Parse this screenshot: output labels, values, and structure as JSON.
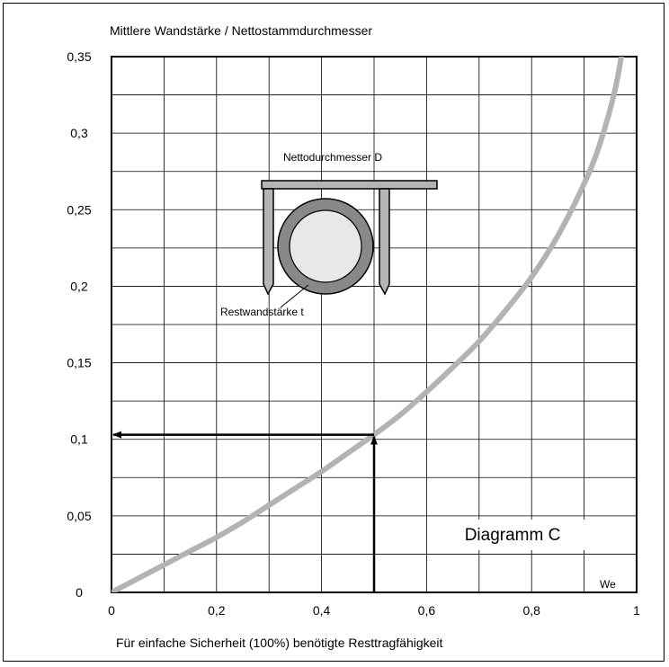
{
  "chart_data": {
    "type": "line",
    "title": "Mittlere Wandstärke / Nettostammdurchmesser",
    "xlabel": "Für einfache Sicherheit (100%) benötigte Resttragfähigkeit",
    "ylabel": "",
    "xlim": [
      0,
      1
    ],
    "ylim": [
      0,
      0.35
    ],
    "x_ticks": [
      {
        "value": 0,
        "label": "0"
      },
      {
        "value": 0.2,
        "label": "0,2"
      },
      {
        "value": 0.4,
        "label": "0,4"
      },
      {
        "value": 0.6,
        "label": "0,6"
      },
      {
        "value": 0.8,
        "label": "0,8"
      },
      {
        "value": 1,
        "label": "1"
      }
    ],
    "y_ticks": [
      {
        "value": 0,
        "label": "0"
      },
      {
        "value": 0.05,
        "label": "0,05"
      },
      {
        "value": 0.1,
        "label": "0,1"
      },
      {
        "value": 0.15,
        "label": "0,15"
      },
      {
        "value": 0.2,
        "label": "0,2"
      },
      {
        "value": 0.25,
        "label": "0,25"
      },
      {
        "value": 0.3,
        "label": "0,3"
      },
      {
        "value": 0.35,
        "label": "0,35"
      }
    ],
    "grid": true,
    "grid_x_step": 0.1,
    "grid_y_step": 0.025,
    "series": [
      {
        "color": "#b3b3b3",
        "x": [
          0,
          0.05,
          0.1,
          0.15,
          0.2,
          0.25,
          0.3,
          0.35,
          0.4,
          0.45,
          0.5,
          0.55,
          0.6,
          0.65,
          0.7,
          0.75,
          0.8,
          0.85,
          0.9,
          0.93,
          0.96,
          0.98
        ],
        "y": [
          0,
          0.009,
          0.018,
          0.027,
          0.036,
          0.046,
          0.057,
          0.068,
          0.079,
          0.091,
          0.103,
          0.116,
          0.131,
          0.147,
          0.164,
          0.184,
          0.206,
          0.233,
          0.267,
          0.293,
          0.33,
          0.37
        ]
      }
    ],
    "readout": {
      "x": 0.5,
      "y": 0.103,
      "color": "#000000"
    },
    "annotations": {
      "diagram_label": "Diagramm C",
      "corner_label": "We",
      "inset_top_label": "Nettodurchmesser D",
      "inset_bottom_label": "Restwandstärke t"
    }
  }
}
